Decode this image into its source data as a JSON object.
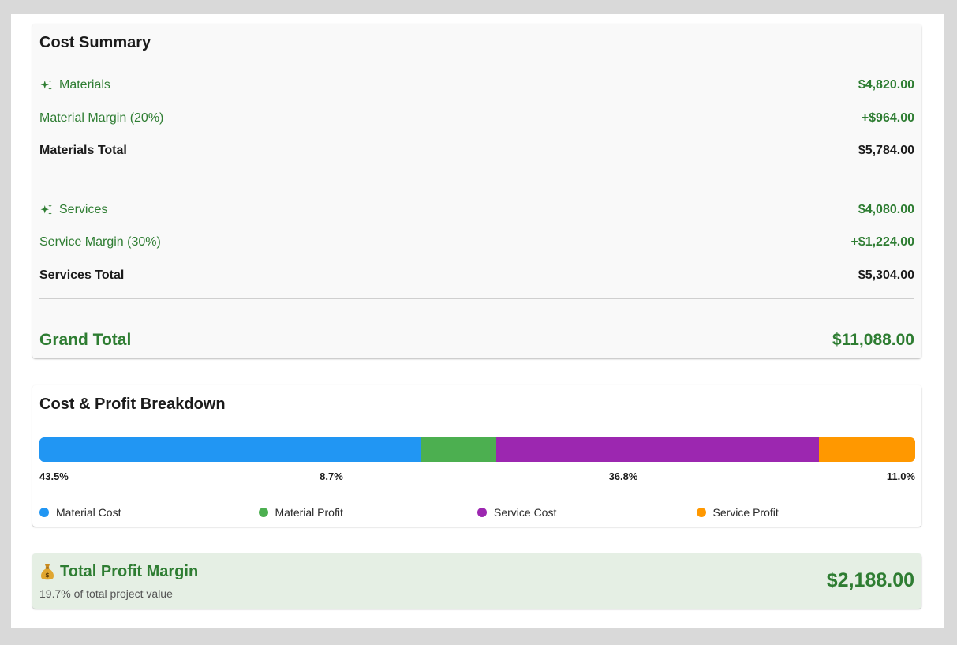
{
  "colors": {
    "green_text": "#2e7d32",
    "material_cost": "#2196f3",
    "material_profit": "#4caf50",
    "service_cost": "#9c27b0",
    "service_profit": "#ff9800",
    "profit_card_bg": "#e5efe4"
  },
  "cost_summary": {
    "title": "Cost Summary",
    "materials": {
      "label": "Materials",
      "icon": "sparkle-icon",
      "amount": "$4,820.00",
      "margin_label": "Material Margin (20%)",
      "margin_amount": "+$964.00",
      "total_label": "Materials Total",
      "total_amount": "$5,784.00"
    },
    "services": {
      "label": "Services",
      "icon": "sparkle-icon",
      "amount": "$4,080.00",
      "margin_label": "Service Margin (30%)",
      "margin_amount": "+$1,224.00",
      "total_label": "Services Total",
      "total_amount": "$5,304.00"
    },
    "grand_total_label": "Grand Total",
    "grand_total_amount": "$11,088.00"
  },
  "breakdown": {
    "title": "Cost & Profit Breakdown",
    "segments": [
      {
        "name": "Material Cost",
        "percent": 43.5,
        "percent_label": "43.5%",
        "color": "#2196f3"
      },
      {
        "name": "Material Profit",
        "percent": 8.7,
        "percent_label": "8.7%",
        "color": "#4caf50"
      },
      {
        "name": "Service Cost",
        "percent": 36.8,
        "percent_label": "36.8%",
        "color": "#9c27b0"
      },
      {
        "name": "Service Profit",
        "percent": 11.0,
        "percent_label": "11.0%",
        "color": "#ff9800"
      }
    ]
  },
  "profit": {
    "icon": "money-bag-icon",
    "title": "Total Profit Margin",
    "subtitle": "19.7% of total project value",
    "amount": "$2,188.00"
  }
}
